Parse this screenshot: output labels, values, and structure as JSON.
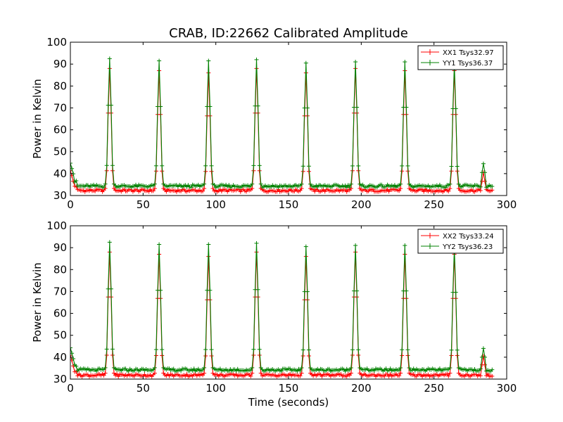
{
  "title": "CRAB, ID:22662 Calibrated Amplitude",
  "chart_data": [
    {
      "type": "line",
      "ylabel": "Power in Kelvin",
      "xlabel": "",
      "xlim": [
        0,
        300
      ],
      "ylim": [
        30,
        100
      ],
      "x_ticks": [
        "0",
        "50",
        "100",
        "150",
        "200",
        "250",
        "300"
      ],
      "y_ticks": [
        "30",
        "40",
        "50",
        "60",
        "70",
        "80",
        "90",
        "100"
      ],
      "grid": false,
      "legend_position": "top-right",
      "series": [
        {
          "name": "XX1 Tsys32.97",
          "color": "#ff0000",
          "baseline": 32.3,
          "start": 41.5,
          "peaks": [
            88,
            87,
            86,
            88,
            86,
            88,
            87,
            87
          ],
          "tail_peak": 40.5
        },
        {
          "name": "YY1 Tsys36.37",
          "color": "#008000",
          "baseline": 34.3,
          "start": 45,
          "peaks": [
            92.5,
            91.5,
            91.5,
            92,
            90.5,
            91,
            91,
            90
          ],
          "tail_peak": 44.5
        }
      ],
      "peak_x": [
        27,
        61,
        95,
        128,
        162,
        196,
        230,
        264
      ],
      "tail_x": 284,
      "x_range": [
        0,
        290
      ]
    },
    {
      "type": "line",
      "ylabel": "Power in Kelvin",
      "xlabel": "Time (seconds)",
      "xlim": [
        0,
        300
      ],
      "ylim": [
        30,
        100
      ],
      "x_ticks": [
        "0",
        "50",
        "100",
        "150",
        "200",
        "250",
        "300"
      ],
      "y_ticks": [
        "30",
        "40",
        "50",
        "60",
        "70",
        "80",
        "90",
        "100"
      ],
      "grid": false,
      "legend_position": "top-right",
      "series": [
        {
          "name": "XX2 Tsys33.24",
          "color": "#ff0000",
          "baseline": 31.8,
          "start": 41,
          "peaks": [
            88,
            87,
            86,
            88,
            86,
            88,
            87,
            87
          ],
          "tail_peak": 40.5
        },
        {
          "name": "YY2 Tsys36.23",
          "color": "#008000",
          "baseline": 34.2,
          "start": 44.5,
          "peaks": [
            92.5,
            91.5,
            91.5,
            92,
            90.5,
            91,
            91,
            90
          ],
          "tail_peak": 44
        }
      ],
      "peak_x": [
        27,
        61,
        95,
        128,
        162,
        196,
        230,
        264
      ],
      "tail_x": 284,
      "x_range": [
        0,
        290
      ]
    }
  ]
}
